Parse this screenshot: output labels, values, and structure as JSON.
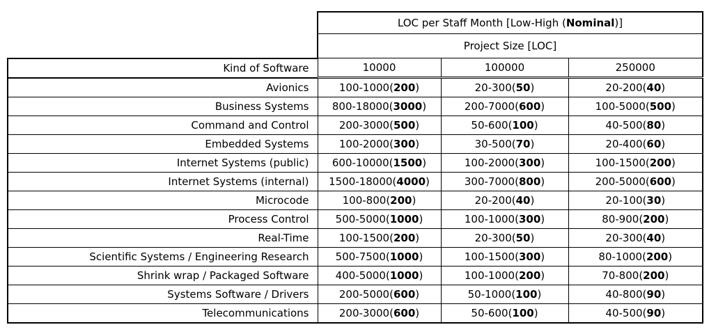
{
  "table": {
    "title": "LOC per Staff Month [Low-High (Nominal)]",
    "subtitle": "Project Size [LOC]",
    "kind_header": "Kind of Software",
    "size_headers": [
      "10000",
      "100000",
      "250000"
    ],
    "rows": [
      {
        "kind": "Avionics",
        "values": [
          "100-1000(200)",
          "20-300(50)",
          "20-200(40)"
        ]
      },
      {
        "kind": "Business Systems",
        "values": [
          "800-18000(3000)",
          "200-7000(600)",
          "100-5000(500)"
        ]
      },
      {
        "kind": "Command and Control",
        "values": [
          "200-3000(500)",
          "50-600(100)",
          "40-500(80)"
        ]
      },
      {
        "kind": "Embedded Systems",
        "values": [
          "100-2000(300)",
          "30-500(70)",
          "20-400(60)"
        ]
      },
      {
        "kind": "Internet Systems (public)",
        "values": [
          "600-10000(1500)",
          "100-2000(300)",
          "100-1500(200)"
        ]
      },
      {
        "kind": "Internet Systems (internal)",
        "values": [
          "1500-18000(4000)",
          "300-7000(800)",
          "200-5000(600)"
        ]
      },
      {
        "kind": "Microcode",
        "values": [
          "100-800(200)",
          "20-200(40)",
          "20-100(30)"
        ]
      },
      {
        "kind": "Process Control",
        "values": [
          "500-5000(1000)",
          "100-1000(300)",
          "80-900(200)"
        ]
      },
      {
        "kind": "Real-Time",
        "values": [
          "100-1500(200)",
          "20-300(50)",
          "20-300(40)"
        ]
      },
      {
        "kind": "Scientific Systems / Engineering Research",
        "values": [
          "500-7500(1000)",
          "100-1500(300)",
          "80-1000(200)"
        ]
      },
      {
        "kind": "Shrink wrap / Packaged Software",
        "values": [
          "400-5000(1000)",
          "100-1000(200)",
          "70-800(200)"
        ]
      },
      {
        "kind": "Systems Software / Drivers",
        "values": [
          "200-5000(600)",
          "50-1000(100)",
          "40-800(90)"
        ]
      },
      {
        "kind": "Telecommunications",
        "values": [
          "200-3000(600)",
          "50-600(100)",
          "40-500(90)"
        ]
      }
    ]
  }
}
